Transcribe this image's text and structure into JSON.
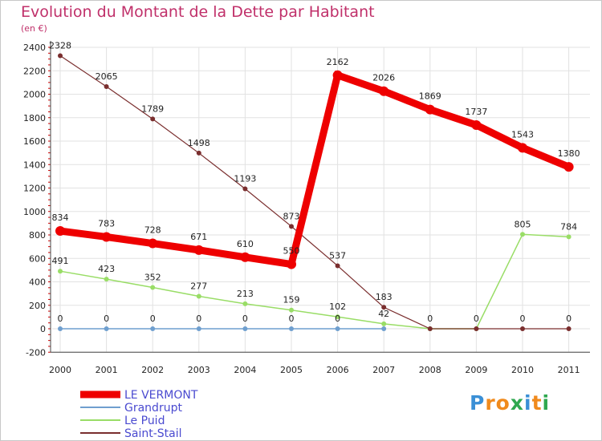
{
  "title": "Evolution du Montant de la Dette par Habitant",
  "subtitle": "(en €)",
  "brand": "Proxiti",
  "chart_data": {
    "type": "line",
    "title": "Evolution du Montant de la Dette par Habitant",
    "ylabel": "(en €)",
    "xlabel": "",
    "ylim": [
      -200,
      2400
    ],
    "yticks": [
      -200,
      0,
      200,
      400,
      600,
      800,
      1000,
      1200,
      1400,
      1600,
      1800,
      2000,
      2200,
      2400
    ],
    "categories": [
      "2000",
      "2001",
      "2002",
      "2003",
      "2004",
      "2005",
      "2006",
      "2007",
      "2008",
      "2009",
      "2010",
      "2011"
    ],
    "grid": true,
    "legend": "bottom-left",
    "series": [
      {
        "name": "LE VERMONT",
        "color": "#ee0000",
        "values": [
          834,
          783,
          728,
          671,
          610,
          550,
          2162,
          2026,
          1869,
          1737,
          1543,
          1380
        ],
        "labels": [
          "834",
          "783",
          "728",
          "671",
          "610",
          "550",
          "2162",
          "2026",
          "1869",
          "1737",
          "1543",
          "1380"
        ]
      },
      {
        "name": "Grandrupt",
        "color": "#6f9fcf",
        "values": [
          0,
          0,
          0,
          0,
          0,
          0,
          0,
          0,
          null,
          null,
          null,
          null
        ],
        "labels": [
          "0",
          "0",
          "0",
          "0",
          "0",
          "0",
          "0",
          "",
          "",
          "",
          "",
          ""
        ]
      },
      {
        "name": "Le Puid",
        "color": "#99dd66",
        "values": [
          491,
          423,
          352,
          277,
          213,
          159,
          102,
          42,
          0,
          0,
          805,
          784
        ],
        "labels": [
          "491",
          "423",
          "352",
          "277",
          "213",
          "159",
          "102",
          "42",
          "",
          "",
          "805",
          "784"
        ]
      },
      {
        "name": "Saint-Stail",
        "color": "#7a2e2e",
        "values": [
          2328,
          2065,
          1789,
          1498,
          1193,
          873,
          537,
          183,
          0,
          0,
          0,
          0
        ],
        "labels": [
          "2328",
          "2065",
          "1789",
          "1498",
          "1193",
          "873",
          "537",
          "183",
          "0",
          "0",
          "0",
          "0"
        ]
      }
    ]
  }
}
